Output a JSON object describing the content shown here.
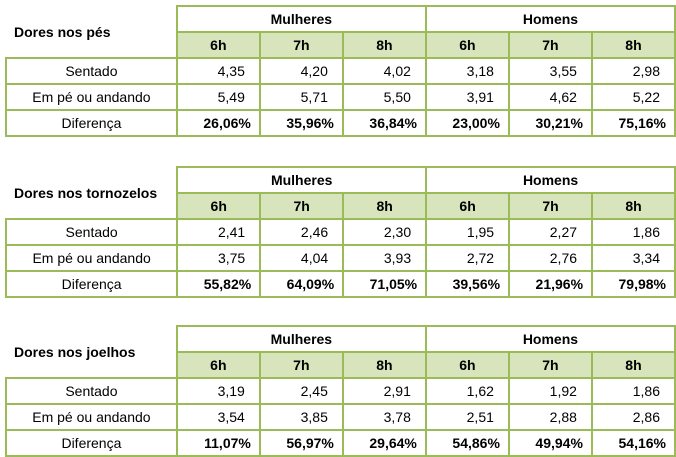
{
  "groups": [
    "Mulheres",
    "Homens"
  ],
  "hours": [
    "6h",
    "7h",
    "8h",
    "6h",
    "7h",
    "8h"
  ],
  "row_labels": [
    "Sentado",
    "Em pé ou andando",
    "Diferença"
  ],
  "tables": [
    {
      "title": "Dores nos pés",
      "sentado": [
        "4,35",
        "4,20",
        "4,02",
        "3,18",
        "3,55",
        "2,98"
      ],
      "em_pe": [
        "5,49",
        "5,71",
        "5,50",
        "3,91",
        "4,62",
        "5,22"
      ],
      "diferenca": [
        "26,06%",
        "35,96%",
        "36,84%",
        "23,00%",
        "30,21%",
        "75,16%"
      ]
    },
    {
      "title": "Dores nos tornozelos",
      "sentado": [
        "2,41",
        "2,46",
        "2,30",
        "1,95",
        "2,27",
        "1,86"
      ],
      "em_pe": [
        "3,75",
        "4,04",
        "3,93",
        "2,72",
        "2,76",
        "3,34"
      ],
      "diferenca": [
        "55,82%",
        "64,09%",
        "71,05%",
        "39,56%",
        "21,96%",
        "79,98%"
      ]
    },
    {
      "title": "Dores nos joelhos",
      "sentado": [
        "3,19",
        "2,45",
        "2,91",
        "1,62",
        "1,92",
        "1,86"
      ],
      "em_pe": [
        "3,54",
        "3,85",
        "3,78",
        "2,51",
        "2,88",
        "2,86"
      ],
      "diferenca": [
        "11,07%",
        "56,97%",
        "29,64%",
        "54,86%",
        "49,94%",
        "54,16%"
      ]
    }
  ],
  "colors": {
    "border": "#9bbb59",
    "header_fill": "#d7e4bc"
  }
}
